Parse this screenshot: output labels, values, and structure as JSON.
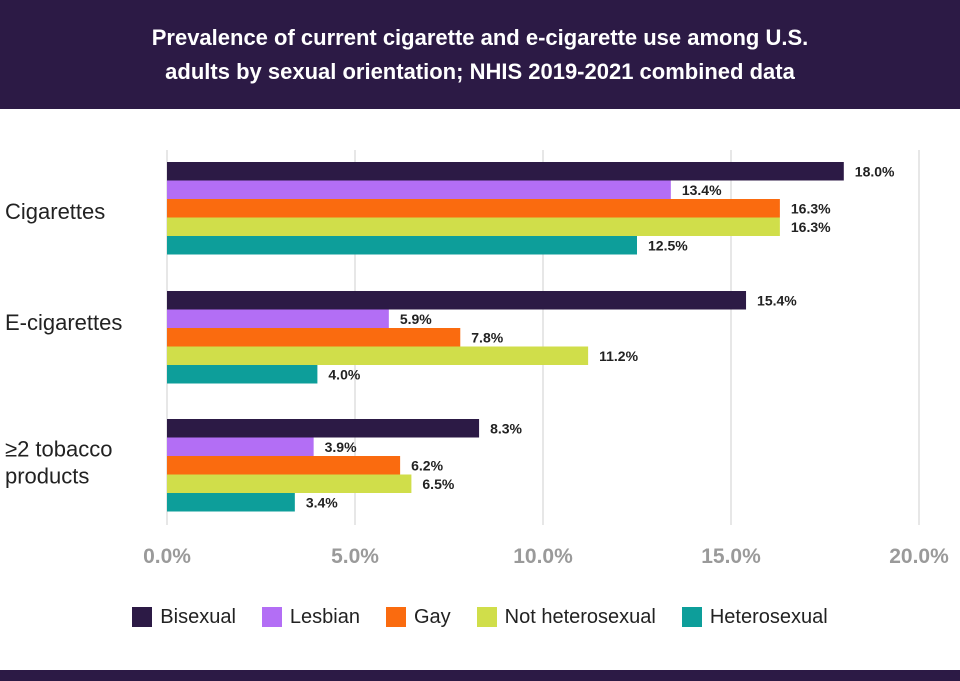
{
  "header": {
    "title_line1": "Prevalence of current cigarette and e-cigarette use among U.S.",
    "title_line2": "adults by sexual orientation; NHIS 2019-2021 combined data"
  },
  "chart_data": {
    "type": "bar",
    "orientation": "horizontal",
    "title": "Prevalence of current cigarette and e-cigarette use among U.S. adults by sexual orientation; NHIS 2019-2021 combined data",
    "categories": [
      {
        "lines": [
          "Cigarettes"
        ]
      },
      {
        "lines": [
          "E-cigarettes"
        ]
      },
      {
        "lines": [
          "≥2 tobacco",
          "products"
        ]
      }
    ],
    "series": [
      {
        "name": "Bisexual",
        "color": "#2c1a45",
        "values": [
          18.0,
          15.4,
          8.3
        ],
        "labels": [
          "18.0%",
          "15.4%",
          "8.3%"
        ]
      },
      {
        "name": "Lesbian",
        "color": "#b36ef5",
        "values": [
          13.4,
          5.9,
          3.9
        ],
        "labels": [
          "13.4%",
          "5.9%",
          "3.9%"
        ]
      },
      {
        "name": "Gay",
        "color": "#fa6b0f",
        "values": [
          16.3,
          7.8,
          6.2
        ],
        "labels": [
          "16.3%",
          "7.8%",
          "6.2%"
        ]
      },
      {
        "name": "Not heterosexual",
        "color": "#d0de4a",
        "values": [
          16.3,
          11.2,
          6.5
        ],
        "labels": [
          "16.3%",
          "11.2%",
          "6.5%"
        ]
      },
      {
        "name": "Heterosexual",
        "color": "#0d9e9a",
        "values": [
          12.5,
          4.0,
          3.4
        ],
        "labels": [
          "12.5%",
          "4.0%",
          "3.4%"
        ]
      }
    ],
    "xlim": [
      0,
      20
    ],
    "xticks": [
      0,
      5,
      10,
      15,
      20
    ],
    "xtick_labels": [
      "0.0%",
      "5.0%",
      "10.0%",
      "15.0%",
      "20.0%"
    ],
    "xlabel": "",
    "ylabel": "",
    "grid": true,
    "legend_position": "bottom"
  }
}
